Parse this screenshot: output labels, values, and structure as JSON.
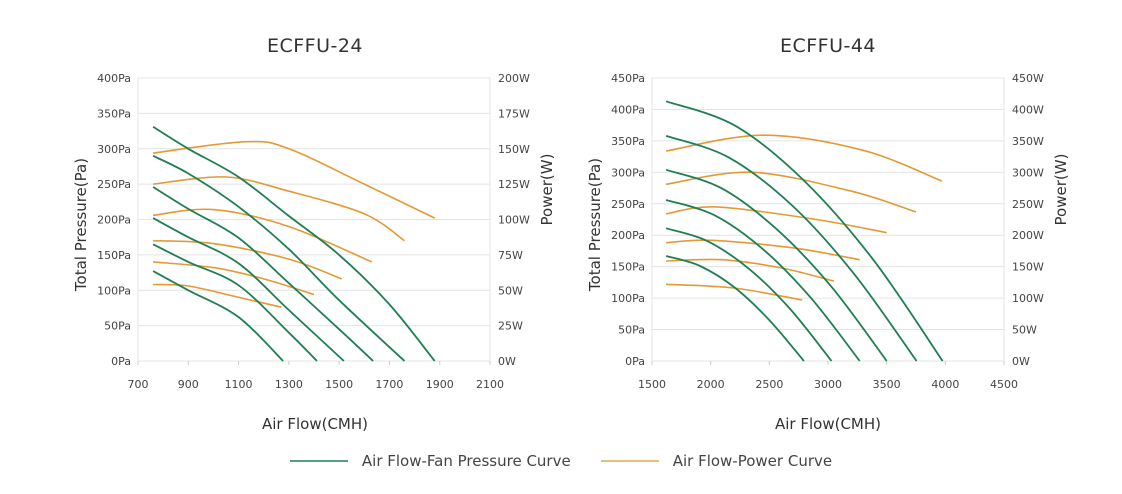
{
  "colors": {
    "pressure": "#1f7f52",
    "power": "#e39a35",
    "grid": "#e4e4e4"
  },
  "legend": {
    "pressure_label": "Air Flow-Fan Pressure Curve",
    "power_label": "Air Flow-Power Curve"
  },
  "chart_data": [
    {
      "type": "line",
      "title": "ECFFU-24",
      "xlabel": "Air Flow(CMH)",
      "ylabel": "Total Pressure(Pa)",
      "y2label": "Power(W)",
      "xlim": [
        700,
        2100
      ],
      "ylim": [
        0,
        400
      ],
      "y2lim": [
        0,
        200
      ],
      "x_ticks": [
        "700",
        "900",
        "1100",
        "1300",
        "1500",
        "1700",
        "1900",
        "2100"
      ],
      "y_ticks": [
        "0Pa",
        "50Pa",
        "100Pa",
        "150Pa",
        "200Pa",
        "250Pa",
        "300Pa",
        "350Pa",
        "400Pa"
      ],
      "y2_ticks": [
        "0W",
        "25W",
        "50W",
        "75W",
        "100W",
        "125W",
        "150W",
        "175W",
        "200W"
      ],
      "grid": true,
      "pressure_series": [
        [
          [
            760,
            331
          ],
          [
            900,
            300
          ],
          [
            1100,
            260
          ],
          [
            1300,
            205
          ],
          [
            1500,
            150
          ],
          [
            1700,
            80
          ],
          [
            1880,
            0
          ]
        ],
        [
          [
            760,
            290
          ],
          [
            900,
            265
          ],
          [
            1100,
            218
          ],
          [
            1300,
            158
          ],
          [
            1500,
            86
          ],
          [
            1760,
            0
          ]
        ],
        [
          [
            760,
            246
          ],
          [
            900,
            215
          ],
          [
            1100,
            174
          ],
          [
            1300,
            110
          ],
          [
            1500,
            45
          ],
          [
            1635,
            0
          ]
        ],
        [
          [
            760,
            202
          ],
          [
            900,
            175
          ],
          [
            1100,
            138
          ],
          [
            1300,
            72
          ],
          [
            1519,
            0
          ]
        ],
        [
          [
            760,
            165
          ],
          [
            900,
            140
          ],
          [
            1100,
            107
          ],
          [
            1300,
            40
          ],
          [
            1412,
            0
          ]
        ],
        [
          [
            760,
            127
          ],
          [
            900,
            100
          ],
          [
            1100,
            62
          ],
          [
            1277,
            0
          ]
        ]
      ],
      "power_series": [
        [
          [
            760,
            147
          ],
          [
            1130,
            155
          ],
          [
            1300,
            150
          ],
          [
            1600,
            125
          ],
          [
            1880,
            101
          ]
        ],
        [
          [
            760,
            125
          ],
          [
            1050,
            130
          ],
          [
            1300,
            120
          ],
          [
            1600,
            104
          ],
          [
            1760,
            85
          ]
        ],
        [
          [
            760,
            103
          ],
          [
            1000,
            107
          ],
          [
            1300,
            95
          ],
          [
            1630,
            70
          ]
        ],
        [
          [
            760,
            85
          ],
          [
            1000,
            83
          ],
          [
            1300,
            72
          ],
          [
            1510,
            58
          ]
        ],
        [
          [
            760,
            70
          ],
          [
            1000,
            66
          ],
          [
            1200,
            58
          ],
          [
            1400,
            47
          ]
        ],
        [
          [
            760,
            54
          ],
          [
            900,
            53
          ],
          [
            1100,
            45
          ],
          [
            1270,
            38
          ]
        ]
      ]
    },
    {
      "type": "line",
      "title": "ECFFU-44",
      "xlabel": "Air Flow(CMH)",
      "ylabel": "Total Pressure(Pa)",
      "y2label": "Power(W)",
      "xlim": [
        1500,
        4500
      ],
      "ylim": [
        0,
        450
      ],
      "y2lim": [
        0,
        450
      ],
      "x_ticks": [
        "1500",
        "2000",
        "2500",
        "3000",
        "3500",
        "4000",
        "4500"
      ],
      "y_ticks": [
        "0Pa",
        "50Pa",
        "100Pa",
        "150Pa",
        "200Pa",
        "250Pa",
        "300Pa",
        "350Pa",
        "400Pa",
        "450Pa"
      ],
      "y2_ticks": [
        "0W",
        "50W",
        "100W",
        "150W",
        "200W",
        "250W",
        "300W",
        "350W",
        "400W",
        "450W"
      ],
      "grid": true,
      "pressure_series": [
        [
          [
            1620,
            413
          ],
          [
            2210,
            374
          ],
          [
            2800,
            286
          ],
          [
            3390,
            160
          ],
          [
            3977,
            0
          ]
        ],
        [
          [
            1620,
            358
          ],
          [
            2150,
            324
          ],
          [
            2690,
            248
          ],
          [
            3220,
            139
          ],
          [
            3755,
            0
          ]
        ],
        [
          [
            1620,
            304
          ],
          [
            2090,
            275
          ],
          [
            2560,
            210
          ],
          [
            3030,
            118
          ],
          [
            3500,
            0
          ]
        ],
        [
          [
            1620,
            256
          ],
          [
            2030,
            232
          ],
          [
            2450,
            177
          ],
          [
            2860,
            99
          ],
          [
            3270,
            0
          ]
        ],
        [
          [
            1620,
            211
          ],
          [
            1970,
            191
          ],
          [
            2330,
            146
          ],
          [
            2680,
            82
          ],
          [
            3030,
            0
          ]
        ],
        [
          [
            1620,
            167
          ],
          [
            1910,
            151
          ],
          [
            2210,
            116
          ],
          [
            2500,
            65
          ],
          [
            2795,
            0
          ]
        ]
      ],
      "power_series": [
        [
          [
            1620,
            334
          ],
          [
            2450,
            359
          ],
          [
            3300,
            335
          ],
          [
            3970,
            286
          ]
        ],
        [
          [
            1620,
            281
          ],
          [
            2350,
            300
          ],
          [
            3200,
            270
          ],
          [
            3750,
            237
          ]
        ],
        [
          [
            1620,
            234
          ],
          [
            2050,
            245
          ],
          [
            2900,
            225
          ],
          [
            3500,
            204
          ]
        ],
        [
          [
            1620,
            188
          ],
          [
            2000,
            192
          ],
          [
            2700,
            180
          ],
          [
            3270,
            161
          ]
        ],
        [
          [
            1620,
            159
          ],
          [
            2100,
            161
          ],
          [
            2600,
            148
          ],
          [
            3050,
            127
          ]
        ],
        [
          [
            1620,
            122
          ],
          [
            2200,
            116
          ],
          [
            2780,
            97
          ]
        ]
      ]
    }
  ]
}
